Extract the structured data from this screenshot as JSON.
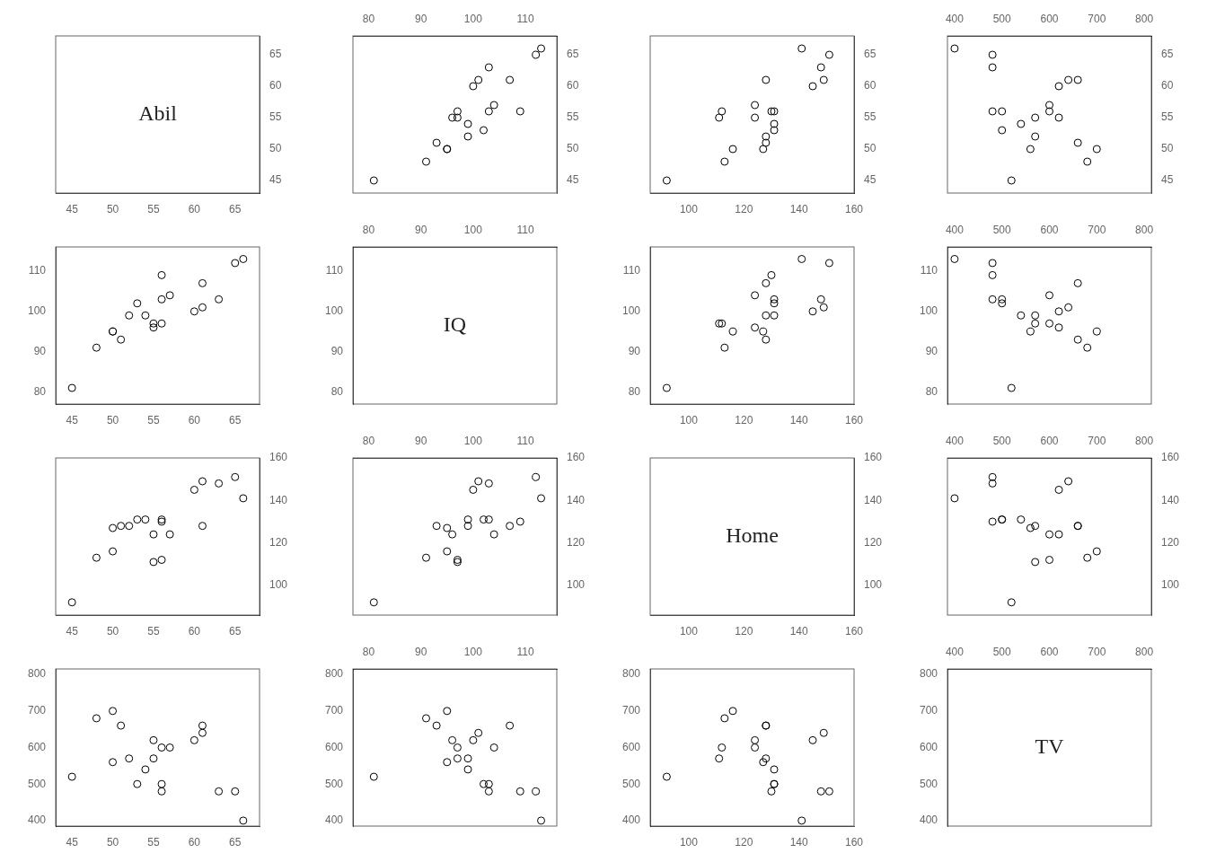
{
  "chart_data": [
    {
      "type": "text",
      "annotation": "Abil",
      "xlim": [
        43,
        68
      ],
      "ylim": [
        43,
        68
      ],
      "xticks": [
        45,
        50,
        55,
        60,
        65
      ],
      "yticks": [
        45,
        50,
        55,
        60,
        65
      ],
      "grid": false
    },
    {
      "type": "scatter",
      "x": [
        107,
        109,
        81,
        113,
        112,
        97,
        96,
        102,
        95,
        99,
        91,
        95,
        100,
        103,
        104,
        99,
        101,
        93,
        103,
        97
      ],
      "values": [
        61,
        56,
        45,
        66,
        65,
        55,
        55,
        53,
        50,
        52,
        48,
        50,
        60,
        63,
        57,
        54,
        61,
        51,
        56,
        56
      ],
      "xlim": [
        77,
        116
      ],
      "ylim": [
        43,
        68
      ],
      "xticks": [
        80,
        90,
        100,
        110
      ],
      "yticks": [
        45,
        50,
        55,
        60,
        65
      ],
      "color": "#000000",
      "marker": "circle",
      "grid": false
    },
    {
      "type": "scatter",
      "x": [
        128,
        130,
        92,
        141,
        151,
        111,
        124,
        131,
        116,
        128,
        113,
        127,
        145,
        148,
        124,
        131,
        149,
        128,
        131,
        112
      ],
      "values": [
        61,
        56,
        45,
        66,
        65,
        55,
        55,
        53,
        50,
        52,
        48,
        50,
        60,
        63,
        57,
        54,
        61,
        51,
        56,
        56
      ],
      "xlim": [
        86,
        160
      ],
      "ylim": [
        43,
        68
      ],
      "xticks": [
        100,
        120,
        140,
        160
      ],
      "yticks": [
        45,
        50,
        55,
        60,
        65
      ],
      "color": "#000000",
      "marker": "circle",
      "grid": false
    },
    {
      "type": "scatter",
      "x": [
        660,
        480,
        520,
        400,
        480,
        570,
        620,
        500,
        700,
        570,
        680,
        560,
        620,
        480,
        600,
        540,
        640,
        660,
        500,
        600
      ],
      "values": [
        61,
        56,
        45,
        66,
        65,
        55,
        55,
        53,
        50,
        52,
        48,
        50,
        60,
        63,
        57,
        54,
        61,
        51,
        56,
        56
      ],
      "xlim": [
        385,
        815
      ],
      "ylim": [
        43,
        68
      ],
      "xticks": [
        400,
        500,
        600,
        700,
        800
      ],
      "yticks": [
        45,
        50,
        55,
        60,
        65
      ],
      "color": "#000000",
      "marker": "circle",
      "grid": false
    },
    {
      "type": "scatter",
      "x": [
        61,
        56,
        45,
        66,
        65,
        55,
        55,
        53,
        50,
        52,
        48,
        50,
        60,
        63,
        57,
        54,
        61,
        51,
        56,
        56
      ],
      "values": [
        107,
        109,
        81,
        113,
        112,
        97,
        96,
        102,
        95,
        99,
        91,
        95,
        100,
        103,
        104,
        99,
        101,
        93,
        103,
        97
      ],
      "xlim": [
        43,
        68
      ],
      "ylim": [
        77,
        116
      ],
      "xticks": [
        45,
        50,
        55,
        60,
        65
      ],
      "yticks": [
        80,
        90,
        100,
        110
      ],
      "color": "#000000",
      "marker": "circle",
      "grid": false
    },
    {
      "type": "text",
      "annotation": "IQ",
      "xlim": [
        77,
        116
      ],
      "ylim": [
        77,
        116
      ],
      "xticks": [
        80,
        90,
        100,
        110
      ],
      "yticks": [
        80,
        90,
        100,
        110
      ],
      "grid": false
    },
    {
      "type": "scatter",
      "x": [
        128,
        130,
        92,
        141,
        151,
        111,
        124,
        131,
        116,
        128,
        113,
        127,
        145,
        148,
        124,
        131,
        149,
        128,
        131,
        112
      ],
      "values": [
        107,
        109,
        81,
        113,
        112,
        97,
        96,
        102,
        95,
        99,
        91,
        95,
        100,
        103,
        104,
        99,
        101,
        93,
        103,
        97
      ],
      "xlim": [
        86,
        160
      ],
      "ylim": [
        77,
        116
      ],
      "xticks": [
        100,
        120,
        140,
        160
      ],
      "yticks": [
        80,
        90,
        100,
        110
      ],
      "color": "#000000",
      "marker": "circle",
      "grid": false
    },
    {
      "type": "scatter",
      "x": [
        660,
        480,
        520,
        400,
        480,
        570,
        620,
        500,
        700,
        570,
        680,
        560,
        620,
        480,
        600,
        540,
        640,
        660,
        500,
        600
      ],
      "values": [
        107,
        109,
        81,
        113,
        112,
        97,
        96,
        102,
        95,
        99,
        91,
        95,
        100,
        103,
        104,
        99,
        101,
        93,
        103,
        97
      ],
      "xlim": [
        385,
        815
      ],
      "ylim": [
        77,
        116
      ],
      "xticks": [
        400,
        500,
        600,
        700,
        800
      ],
      "yticks": [
        80,
        90,
        100,
        110
      ],
      "color": "#000000",
      "marker": "circle",
      "grid": false
    },
    {
      "type": "scatter",
      "x": [
        61,
        56,
        45,
        66,
        65,
        55,
        55,
        53,
        50,
        52,
        48,
        50,
        60,
        63,
        57,
        54,
        61,
        51,
        56,
        56
      ],
      "values": [
        128,
        130,
        92,
        141,
        151,
        111,
        124,
        131,
        116,
        128,
        113,
        127,
        145,
        148,
        124,
        131,
        149,
        128,
        131,
        112
      ],
      "xlim": [
        43,
        68
      ],
      "ylim": [
        86,
        160
      ],
      "xticks": [
        45,
        50,
        55,
        60,
        65
      ],
      "yticks": [
        100,
        120,
        140,
        160
      ],
      "color": "#000000",
      "marker": "circle",
      "grid": false
    },
    {
      "type": "scatter",
      "x": [
        107,
        109,
        81,
        113,
        112,
        97,
        96,
        102,
        95,
        99,
        91,
        95,
        100,
        103,
        104,
        99,
        101,
        93,
        103,
        97
      ],
      "values": [
        128,
        130,
        92,
        141,
        151,
        111,
        124,
        131,
        116,
        128,
        113,
        127,
        145,
        148,
        124,
        131,
        149,
        128,
        131,
        112
      ],
      "xlim": [
        77,
        116
      ],
      "ylim": [
        86,
        160
      ],
      "xticks": [
        80,
        90,
        100,
        110
      ],
      "yticks": [
        100,
        120,
        140,
        160
      ],
      "color": "#000000",
      "marker": "circle",
      "grid": false
    },
    {
      "type": "text",
      "annotation": "Home",
      "xlim": [
        86,
        160
      ],
      "ylim": [
        86,
        160
      ],
      "xticks": [
        100,
        120,
        140,
        160
      ],
      "yticks": [
        100,
        120,
        140,
        160
      ],
      "grid": false
    },
    {
      "type": "scatter",
      "x": [
        660,
        480,
        520,
        400,
        480,
        570,
        620,
        500,
        700,
        570,
        680,
        560,
        620,
        480,
        600,
        540,
        640,
        660,
        500,
        600
      ],
      "values": [
        128,
        130,
        92,
        141,
        151,
        111,
        124,
        131,
        116,
        128,
        113,
        127,
        145,
        148,
        124,
        131,
        149,
        128,
        131,
        112
      ],
      "xlim": [
        385,
        815
      ],
      "ylim": [
        86,
        160
      ],
      "xticks": [
        400,
        500,
        600,
        700,
        800
      ],
      "yticks": [
        100,
        120,
        140,
        160
      ],
      "color": "#000000",
      "marker": "circle",
      "grid": false
    },
    {
      "type": "scatter",
      "x": [
        61,
        56,
        45,
        66,
        65,
        55,
        55,
        53,
        50,
        52,
        48,
        50,
        60,
        63,
        57,
        54,
        61,
        51,
        56,
        56
      ],
      "values": [
        660,
        480,
        520,
        400,
        480,
        570,
        620,
        500,
        700,
        570,
        680,
        560,
        620,
        480,
        600,
        540,
        640,
        660,
        500,
        600
      ],
      "xlim": [
        43,
        68
      ],
      "ylim": [
        385,
        815
      ],
      "xticks": [
        45,
        50,
        55,
        60,
        65
      ],
      "yticks": [
        400,
        500,
        600,
        700,
        800
      ],
      "color": "#000000",
      "marker": "circle",
      "grid": false
    },
    {
      "type": "scatter",
      "x": [
        107,
        109,
        81,
        113,
        112,
        97,
        96,
        102,
        95,
        99,
        91,
        95,
        100,
        103,
        104,
        99,
        101,
        93,
        103,
        97
      ],
      "values": [
        660,
        480,
        520,
        400,
        480,
        570,
        620,
        500,
        700,
        570,
        680,
        560,
        620,
        480,
        600,
        540,
        640,
        660,
        500,
        600
      ],
      "xlim": [
        77,
        116
      ],
      "ylim": [
        385,
        815
      ],
      "xticks": [
        80,
        90,
        100,
        110
      ],
      "yticks": [
        400,
        500,
        600,
        700,
        800
      ],
      "color": "#000000",
      "marker": "circle",
      "grid": false
    },
    {
      "type": "scatter",
      "x": [
        128,
        130,
        92,
        141,
        151,
        111,
        124,
        131,
        116,
        128,
        113,
        127,
        145,
        148,
        124,
        131,
        149,
        128,
        131,
        112
      ],
      "values": [
        660,
        480,
        520,
        400,
        480,
        570,
        620,
        500,
        700,
        570,
        680,
        560,
        620,
        480,
        600,
        540,
        640,
        660,
        500,
        600
      ],
      "xlim": [
        86,
        160
      ],
      "ylim": [
        385,
        815
      ],
      "xticks": [
        100,
        120,
        140,
        160
      ],
      "yticks": [
        400,
        500,
        600,
        700,
        800
      ],
      "color": "#000000",
      "marker": "circle",
      "grid": false
    },
    {
      "type": "text",
      "annotation": "TV",
      "xlim": [
        385,
        815
      ],
      "ylim": [
        385,
        815
      ],
      "xticks": [
        400,
        500,
        600,
        700,
        800
      ],
      "yticks": [
        400,
        500,
        600,
        700,
        800
      ],
      "grid": false
    }
  ]
}
